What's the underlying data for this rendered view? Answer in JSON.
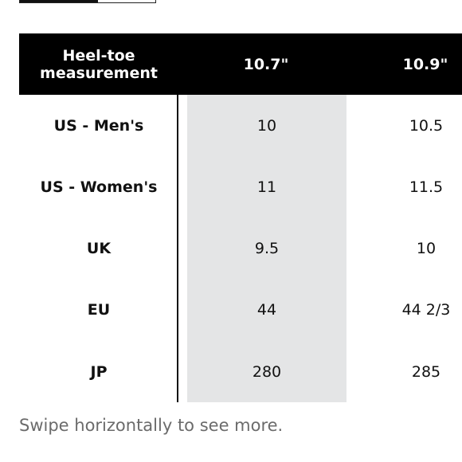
{
  "table": {
    "header": {
      "label_line1": "Heel-toe",
      "label_line2": "measurement",
      "columns": [
        "10.7\"",
        "10.9\""
      ]
    },
    "rows": [
      {
        "label": "US - Men's",
        "values": [
          "10",
          "10.5"
        ]
      },
      {
        "label": "US - Women's",
        "values": [
          "11",
          "11.5"
        ]
      },
      {
        "label": "UK",
        "values": [
          "9.5",
          "10"
        ]
      },
      {
        "label": "EU",
        "values": [
          "44",
          "44 2/3"
        ]
      },
      {
        "label": "JP",
        "values": [
          "280",
          "285"
        ]
      }
    ],
    "highlight_color": "#e4e5e6",
    "header_color": "#000000"
  },
  "hint": "Swipe horizontally to see more."
}
